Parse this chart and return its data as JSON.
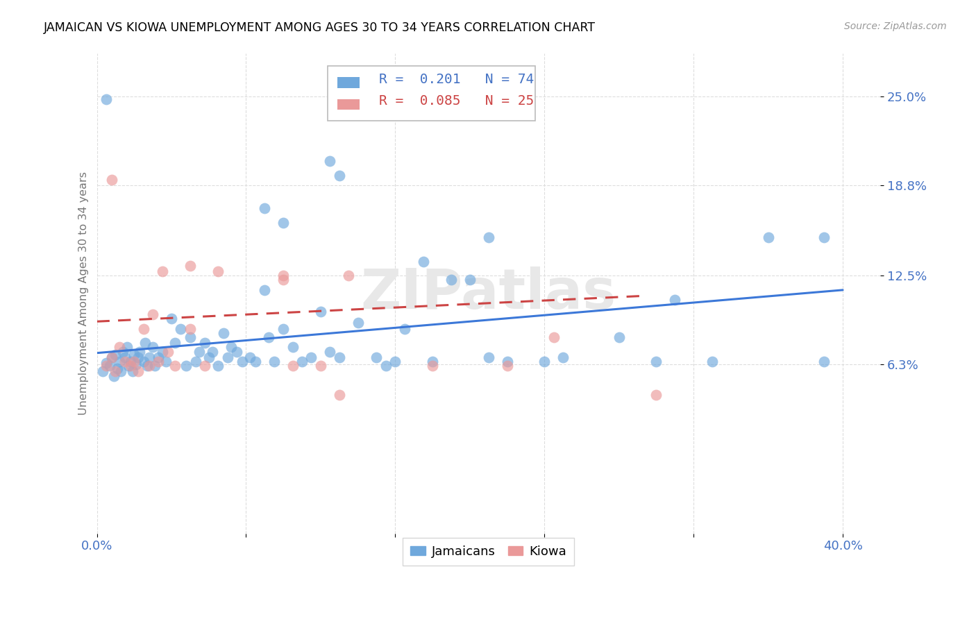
{
  "title": "JAMAICAN VS KIOWA UNEMPLOYMENT AMONG AGES 30 TO 34 YEARS CORRELATION CHART",
  "source": "Source: ZipAtlas.com",
  "ylabel": "Unemployment Among Ages 30 to 34 years",
  "xlim": [
    0.0,
    0.42
  ],
  "ylim": [
    -0.055,
    0.28
  ],
  "xtick_positions": [
    0.0,
    0.08,
    0.16,
    0.24,
    0.32,
    0.4
  ],
  "xticklabels": [
    "0.0%",
    "",
    "",
    "",
    "",
    "40.0%"
  ],
  "ytick_positions": [
    0.063,
    0.125,
    0.188,
    0.25
  ],
  "ytick_labels": [
    "6.3%",
    "12.5%",
    "18.8%",
    "25.0%"
  ],
  "jamaicans_R": 0.201,
  "jamaicans_N": 74,
  "kiowa_R": 0.085,
  "kiowa_N": 25,
  "blue_color": "#6fa8dc",
  "pink_color": "#ea9999",
  "blue_line_color": "#3c78d8",
  "pink_line_color": "#cc4444",
  "tick_color": "#4472c4",
  "legend_label_blue": "Jamaicans",
  "legend_label_pink": "Kiowa",
  "blue_trendline_x": [
    0.0,
    0.4
  ],
  "blue_trendline_y": [
    0.071,
    0.115
  ],
  "pink_trendline_x": [
    0.0,
    0.295
  ],
  "pink_trendline_y": [
    0.093,
    0.111
  ],
  "jamaicans_x": [
    0.003,
    0.005,
    0.007,
    0.008,
    0.009,
    0.01,
    0.011,
    0.012,
    0.013,
    0.014,
    0.015,
    0.016,
    0.017,
    0.018,
    0.019,
    0.02,
    0.021,
    0.022,
    0.023,
    0.025,
    0.026,
    0.027,
    0.028,
    0.03,
    0.031,
    0.033,
    0.035,
    0.037,
    0.04,
    0.042,
    0.045,
    0.048,
    0.05,
    0.053,
    0.055,
    0.058,
    0.06,
    0.062,
    0.065,
    0.068,
    0.07,
    0.072,
    0.075,
    0.078,
    0.082,
    0.085,
    0.09,
    0.092,
    0.095,
    0.1,
    0.105,
    0.11,
    0.115,
    0.12,
    0.125,
    0.13,
    0.14,
    0.15,
    0.155,
    0.16,
    0.165,
    0.18,
    0.19,
    0.2,
    0.21,
    0.22,
    0.24,
    0.25,
    0.28,
    0.3,
    0.31,
    0.33,
    0.36,
    0.39
  ],
  "jamaicans_y": [
    0.058,
    0.064,
    0.062,
    0.068,
    0.055,
    0.07,
    0.06,
    0.065,
    0.058,
    0.072,
    0.068,
    0.075,
    0.062,
    0.065,
    0.058,
    0.07,
    0.063,
    0.068,
    0.072,
    0.065,
    0.078,
    0.062,
    0.068,
    0.075,
    0.062,
    0.068,
    0.072,
    0.065,
    0.095,
    0.078,
    0.088,
    0.062,
    0.082,
    0.065,
    0.072,
    0.078,
    0.068,
    0.072,
    0.062,
    0.085,
    0.068,
    0.075,
    0.072,
    0.065,
    0.068,
    0.065,
    0.115,
    0.082,
    0.065,
    0.088,
    0.075,
    0.065,
    0.068,
    0.1,
    0.072,
    0.068,
    0.092,
    0.068,
    0.062,
    0.065,
    0.088,
    0.065,
    0.122,
    0.122,
    0.068,
    0.065,
    0.065,
    0.068,
    0.082,
    0.065,
    0.108,
    0.065,
    0.152,
    0.065
  ],
  "jamaicans_outlier_x": [
    0.005
  ],
  "jamaicans_outlier_y": [
    0.248
  ],
  "jamaicans_high": [
    [
      0.09,
      0.172
    ],
    [
      0.1,
      0.162
    ],
    [
      0.125,
      0.205
    ],
    [
      0.13,
      0.195
    ],
    [
      0.175,
      0.135
    ],
    [
      0.21,
      0.152
    ],
    [
      0.39,
      0.152
    ]
  ],
  "kiowa_x": [
    0.005,
    0.008,
    0.01,
    0.012,
    0.015,
    0.018,
    0.02,
    0.022,
    0.025,
    0.028,
    0.03,
    0.033,
    0.038,
    0.042,
    0.05,
    0.058,
    0.065,
    0.1,
    0.105,
    0.12,
    0.13,
    0.18,
    0.22,
    0.245,
    0.3
  ],
  "kiowa_y": [
    0.062,
    0.068,
    0.058,
    0.075,
    0.065,
    0.062,
    0.065,
    0.058,
    0.088,
    0.062,
    0.098,
    0.065,
    0.072,
    0.062,
    0.088,
    0.062,
    0.128,
    0.122,
    0.062,
    0.062,
    0.042,
    0.062,
    0.062,
    0.082,
    0.042
  ],
  "kiowa_outlier_x": [
    0.008
  ],
  "kiowa_outlier_y": [
    0.192
  ],
  "kiowa_high": [
    [
      0.035,
      0.128
    ],
    [
      0.05,
      0.132
    ],
    [
      0.1,
      0.125
    ],
    [
      0.135,
      0.125
    ]
  ]
}
